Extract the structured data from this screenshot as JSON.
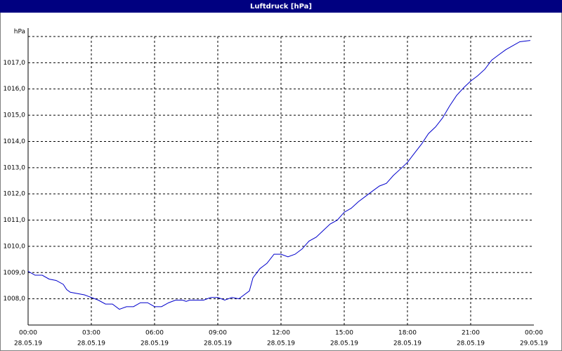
{
  "chart_data": {
    "type": "line",
    "title": "Luftdruck [hPa]",
    "ylabel": "hPa",
    "x": [
      0,
      0.33,
      0.67,
      1,
      1.33,
      1.67,
      1.83,
      2,
      2.33,
      2.67,
      3,
      3.33,
      3.67,
      4,
      4.33,
      4.67,
      5,
      5.33,
      5.67,
      6,
      6.33,
      6.67,
      7,
      7.33,
      7.5,
      7.67,
      8,
      8.33,
      8.67,
      9,
      9.33,
      9.67,
      10,
      10.5,
      10.67,
      11,
      11.33,
      11.67,
      12,
      12.33,
      12.67,
      13,
      13.33,
      13.67,
      14,
      14.33,
      14.67,
      15,
      15.33,
      15.67,
      16,
      16.33,
      16.67,
      17,
      17.33,
      17.67,
      18,
      18.33,
      18.67,
      19,
      19.33,
      19.67,
      20,
      20.33,
      20.67,
      21,
      21.33,
      21.67,
      22,
      22.33,
      22.67,
      23,
      23.33,
      23.83
    ],
    "series": [
      {
        "name": "Luftdruck",
        "color": "#0000cc",
        "values": [
          1009.05,
          1008.9,
          1008.9,
          1008.75,
          1008.7,
          1008.55,
          1008.35,
          1008.25,
          1008.2,
          1008.15,
          1008.05,
          1007.95,
          1007.8,
          1007.8,
          1007.6,
          1007.7,
          1007.7,
          1007.85,
          1007.85,
          1007.7,
          1007.7,
          1007.85,
          1007.95,
          1007.95,
          1007.9,
          1007.95,
          1007.95,
          1007.95,
          1008.05,
          1008.05,
          1007.95,
          1008.05,
          1008.0,
          1008.3,
          1008.8,
          1009.15,
          1009.35,
          1009.7,
          1009.7,
          1009.6,
          1009.7,
          1009.9,
          1010.2,
          1010.35,
          1010.6,
          1010.85,
          1011.0,
          1011.3,
          1011.45,
          1011.7,
          1011.9,
          1012.1,
          1012.3,
          1012.4,
          1012.7,
          1012.95,
          1013.2,
          1013.55,
          1013.9,
          1014.3,
          1014.55,
          1014.9,
          1015.35,
          1015.75,
          1016.05,
          1016.3,
          1016.5,
          1016.75,
          1017.1,
          1017.3,
          1017.5,
          1017.65,
          1017.8,
          1017.85
        ]
      }
    ],
    "xlim": [
      0,
      24
    ],
    "xticks": [
      {
        "value": 0,
        "label": "00:00"
      },
      {
        "value": 3,
        "label": "03:00"
      },
      {
        "value": 6,
        "label": "06:00"
      },
      {
        "value": 9,
        "label": "09:00"
      },
      {
        "value": 12,
        "label": "12:00"
      },
      {
        "value": 15,
        "label": "15:00"
      },
      {
        "value": 18,
        "label": "18:00"
      },
      {
        "value": 21,
        "label": "21:00"
      },
      {
        "value": 24,
        "label": "00:00"
      }
    ],
    "xtick_dates": [
      "28.05.19",
      "28.05.19",
      "28.05.19",
      "28.05.19",
      "28.05.19",
      "28.05.19",
      "28.05.19",
      "28.05.19",
      "29.05.19"
    ],
    "ylim": [
      1007,
      1018
    ],
    "yticks": [
      {
        "value": 1008,
        "label": "1008,0"
      },
      {
        "value": 1009,
        "label": "1009,0"
      },
      {
        "value": 1010,
        "label": "1010,0"
      },
      {
        "value": 1011,
        "label": "1011,0"
      },
      {
        "value": 1012,
        "label": "1012,0"
      },
      {
        "value": 1013,
        "label": "1013,0"
      },
      {
        "value": 1014,
        "label": "1014,0"
      },
      {
        "value": 1015,
        "label": "1015,0"
      },
      {
        "value": 1016,
        "label": "1016,0"
      },
      {
        "value": 1017,
        "label": "1017,0"
      }
    ],
    "grid": true
  }
}
